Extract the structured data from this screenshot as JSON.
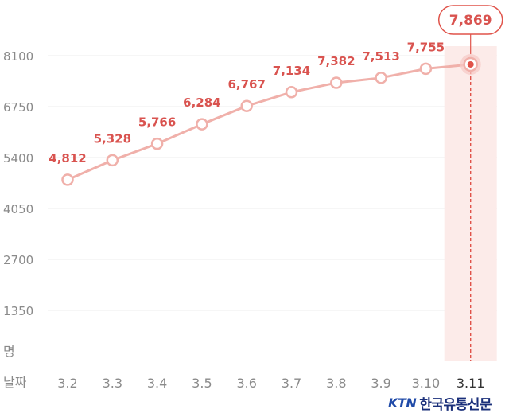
{
  "chart_data": {
    "type": "line",
    "categories": [
      "3.2",
      "3.3",
      "3.4",
      "3.5",
      "3.6",
      "3.7",
      "3.8",
      "3.9",
      "3.10",
      "3.11"
    ],
    "values": [
      4812,
      5328,
      5766,
      6284,
      6767,
      7134,
      7382,
      7513,
      7755,
      7869
    ],
    "value_labels": [
      "4,812",
      "5,328",
      "5,766",
      "6,284",
      "6,767",
      "7,134",
      "7,382",
      "7,513",
      "7,755",
      "7,869"
    ],
    "yticks": [
      8100,
      6750,
      5400,
      4050,
      2700,
      1350
    ],
    "ytick_labels": [
      "8100",
      "6750",
      "5400",
      "4050",
      "2700",
      "1350"
    ],
    "ylim": [
      0,
      8100
    ],
    "ylabel": "명",
    "xlabel": "날짜",
    "highlight_index": 9,
    "grid": true,
    "colors": {
      "line": "#f0b0aa",
      "label": "#d9534f",
      "highlight_band": "#fcebe9",
      "highlight_dot": "#e0534a"
    }
  },
  "brand": {
    "mark": "KTN",
    "name": "한국유통신문"
  }
}
